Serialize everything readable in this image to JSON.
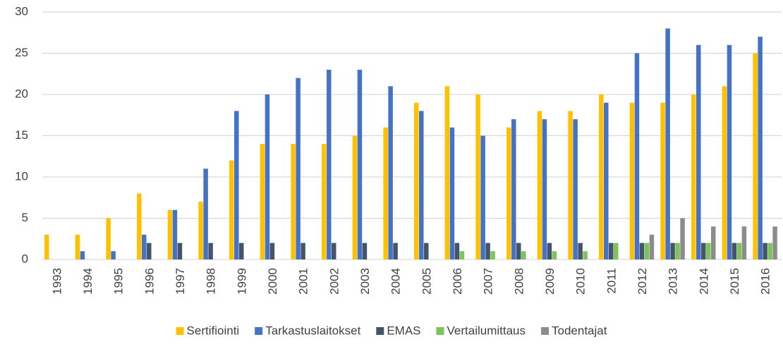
{
  "chart_data": {
    "type": "bar",
    "categories": [
      "1993",
      "1994",
      "1995",
      "1996",
      "1997",
      "1998",
      "1999",
      "2000",
      "2001",
      "2002",
      "2003",
      "2004",
      "2005",
      "2006",
      "2007",
      "2008",
      "2009",
      "2010",
      "2011",
      "2012",
      "2013",
      "2014",
      "2015",
      "2016"
    ],
    "series": [
      {
        "name": "Sertifiointi",
        "color": "#ffc000",
        "values": [
          3,
          3,
          5,
          8,
          6,
          7,
          12,
          14,
          14,
          14,
          15,
          16,
          19,
          21,
          20,
          16,
          18,
          18,
          20,
          19,
          19,
          20,
          21,
          25
        ]
      },
      {
        "name": "Tarkastuslaitokset",
        "color": "#4472c4",
        "values": [
          0,
          1,
          1,
          3,
          6,
          11,
          18,
          20,
          22,
          23,
          23,
          21,
          18,
          16,
          15,
          17,
          17,
          17,
          19,
          25,
          28,
          26,
          26,
          27
        ]
      },
      {
        "name": "EMAS",
        "color": "#44546a",
        "values": [
          0,
          0,
          0,
          2,
          2,
          2,
          2,
          2,
          2,
          2,
          2,
          2,
          2,
          2,
          2,
          2,
          2,
          2,
          2,
          2,
          2,
          2,
          2,
          2
        ]
      },
      {
        "name": "Vertailumittaus",
        "color": "#7cc35a",
        "values": [
          0,
          0,
          0,
          0,
          0,
          0,
          0,
          0,
          0,
          0,
          0,
          0,
          0,
          1,
          1,
          1,
          1,
          1,
          2,
          2,
          2,
          2,
          2,
          2
        ]
      },
      {
        "name": "Todentajat",
        "color": "#8c8c8c",
        "values": [
          0,
          0,
          0,
          0,
          0,
          0,
          0,
          0,
          0,
          0,
          0,
          0,
          0,
          0,
          0,
          0,
          0,
          0,
          0,
          3,
          5,
          4,
          4,
          4
        ]
      }
    ],
    "ylim": [
      0,
      30
    ],
    "yticks": [
      0,
      5,
      10,
      15,
      20,
      25,
      30
    ],
    "grid": true,
    "legend": "bottom"
  }
}
